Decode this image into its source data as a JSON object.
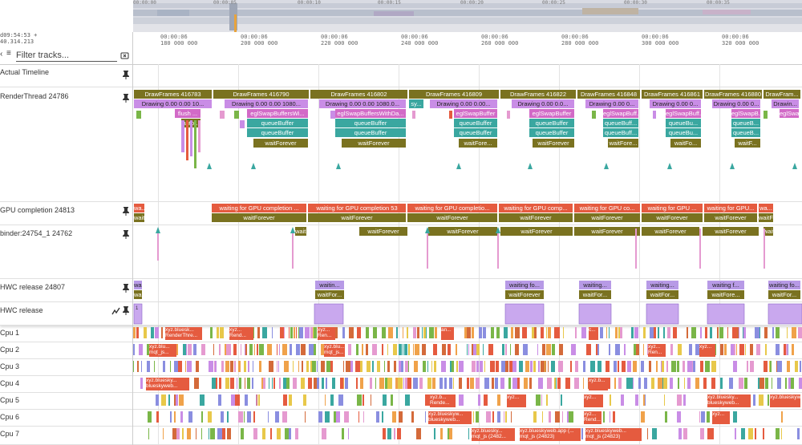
{
  "overview": {
    "tick_labels": [
      "00:00:00",
      "00:00:05",
      "00:00:10",
      "00:00:15",
      "00:00:20",
      "00:00:25",
      "00:00:30",
      "00:00:35"
    ]
  },
  "header": {
    "time_origin_line1": "d09:54:53 +",
    "time_origin_line2": "40.314.213",
    "filter_placeholder": "Filter tracks...",
    "ticks": [
      {
        "l1": "00:00:06",
        "l2": "180 000 000"
      },
      {
        "l1": "00:00:06",
        "l2": "200 000 000"
      },
      {
        "l1": "00:00:06",
        "l2": "220 000 000"
      },
      {
        "l1": "00:00:06",
        "l2": "240 000 000"
      },
      {
        "l1": "00:00:06",
        "l2": "260 000 000"
      },
      {
        "l1": "00:00:06",
        "l2": "280 000 000"
      },
      {
        "l1": "00:00:06",
        "l2": "300 000 000"
      },
      {
        "l1": "00:00:06",
        "l2": "320 000 000"
      }
    ]
  },
  "tracks": {
    "actual_timeline": "Actual Timeline",
    "render_thread": "RenderThread 24786",
    "gpu_completion": "GPU completion 24813",
    "binder": "binder:24754_1 24762",
    "hwc_release_thread": "HWC release 24807",
    "hwc_release": "HWC release"
  },
  "cpus": [
    "Cpu 1",
    "Cpu 2",
    "Cpu 3",
    "Cpu 4",
    "Cpu 5",
    "Cpu 6",
    "Cpu 7"
  ],
  "render": {
    "drawframes": [
      "DrawFrames 416783",
      "DrawFrames 416790",
      "DrawFrames 416802",
      "DrawFrames 416809",
      "DrawFrames 416822",
      "DrawFrames 416848",
      "DrawFrames 416861",
      "DrawFrames 416880",
      "DrawFram..."
    ],
    "drawing": [
      "Drawing 0.00 0.00 10...",
      "Drawing 0.00 0.00 1080...",
      "Drawing 0.00 0.00 1080.0...",
      "Drawing 0.00 0.00...",
      "Drawing 0.00 0.0...",
      "Drawing 0.00 0...",
      "Drawing 0.00 0...",
      "Drawing 0.00 0...",
      "Drawin..."
    ],
    "sy": "sy...",
    "egl": [
      "eglSwapBuffersWi...",
      "eglSwapBuffersWithDa...",
      "eglSwapBuffer",
      "eglSwapBuffer",
      "eglSwapBuff...",
      "eglSwapBuff...",
      "eglSwapB...",
      "eglSwapB..."
    ],
    "flush": "flush ...",
    "auto": "auto...",
    "queue": "queueBuffer",
    "queue_short": "queueBuff...",
    "queue_shorter": "queueBu...",
    "queue_b": "queueB...",
    "wait": "waitForever",
    "wait_short": "waitFore...",
    "wait_shorter": "waitFo...",
    "wait_b": "waitF..."
  },
  "gpu": {
    "waiting": [
      "waiting for GPU completion ...",
      "waiting for GPU completion 53",
      "waiting for GPU completio...",
      "waiting for GPU comp...",
      "waiting for GPU co...",
      "waiting for GPU ...",
      "waiting for GPU...",
      "wa..."
    ],
    "wait": "waitForever"
  },
  "hwc": {
    "waiting": [
      "waitin...",
      "waiting fo...",
      "waiting...",
      "waiting...",
      "waiting f...",
      "waiting fo..."
    ],
    "wait": [
      "waitForever",
      "waitFor...",
      "waitFor...",
      "waitFore...",
      "waitFor..."
    ]
  },
  "cpu_labels": {
    "c1": [
      "xyz.bluesk...",
      "RenderThre...",
      "xyz...",
      "Rend...",
      "xyz...",
      "Ren...",
      "an...",
      "c..."
    ],
    "c2": [
      "xyz.blu...",
      "mqt_js...",
      "xyz.blu...",
      "mqt_js...",
      "xyz...",
      "Ren...",
      "xyz..."
    ],
    "c4": [
      "xyz.bluesky...",
      "blueskyweb...",
      "xyz.b...",
      "xyz.b...",
      "xyz.b..."
    ],
    "c5": [
      "xyz.b...",
      "Rende...",
      "xyz...",
      "xyz...",
      "xyz.bluesky...",
      "blueskyweb...",
      "xyz.blueskyw..."
    ],
    "c6": [
      "xyz.blueskyw...",
      "blueskyweb...",
      "xyz...",
      "Rend...",
      "xyz..."
    ],
    "c7": [
      "xyz.bluesky...",
      "mqt_js (2482...",
      "xyz.blueskyweb.app (...",
      "mqt_js (24823)",
      "xyz.blueskyweb...",
      "mqt_js (24823)"
    ]
  }
}
